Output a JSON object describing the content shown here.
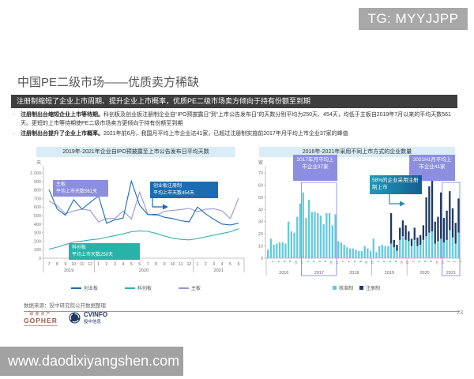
{
  "badge": {
    "text": "TG: MYYJJPP"
  },
  "page": {
    "title": "中国PE二级市场——优质卖方稀缺",
    "number": "23"
  },
  "header_bar": {
    "text": "注册制缩短了企业上市周期、提升企业上市概率，优质PE二级市场卖方倾向于持有份额至到期"
  },
  "bullets": [
    {
      "marker": "·",
      "lead": "注册制出台缩短企业上市等待期。",
      "text": "科创板及创业板注册制企业自“IPO预披露日”到“上市公告发布日”的天数分别平均为250天、454天，均低于主板自2019年7月以来的平均天数561天。更短的上市等待期使PE二级市场卖方更倾向于持有份额至到期"
    },
    {
      "marker": "·",
      "lead": "注册制出台提升了企业上市概率。",
      "text": "2021年前6月，我国月平均上市企业达41家，已超过注册制实施前2017年月平均上市企业37家的峰值"
    }
  ],
  "chart_data": [
    {
      "type": "line",
      "title": "2019年-2021年企业自IPO预披露至上市公告发布日平均天数",
      "unit": "天",
      "ylim": [
        0,
        1000
      ],
      "ytick_step": 100,
      "grid": false,
      "x_months": [
        "7",
        "8",
        "9",
        "10",
        "11",
        "12",
        "1",
        "2",
        "3",
        "4",
        "5",
        "6",
        "7",
        "8",
        "9",
        "10",
        "11",
        "12",
        "1",
        "2",
        "3",
        "4",
        "5",
        "6"
      ],
      "year_groups": [
        {
          "label": "2019",
          "count": 6
        },
        {
          "label": "2020",
          "count": 12
        },
        {
          "label": "2021",
          "count": 6
        }
      ],
      "series": [
        {
          "name": "创业板",
          "color": "#1b6cb0",
          "values": [
            805,
            575,
            505,
            685,
            575,
            655,
            730,
            410,
            450,
            470,
            905,
            620,
            510,
            515,
            480,
            465,
            440,
            425,
            600,
            520,
            455,
            400,
            390,
            410
          ]
        },
        {
          "name": "科创板",
          "color": "#2cb5a8",
          "values": [
            105,
            130,
            160,
            190,
            200,
            215,
            225,
            245,
            265,
            285,
            310,
            320,
            315,
            290,
            260,
            235,
            220,
            215,
            230,
            250,
            270,
            290,
            310,
            345
          ]
        },
        {
          "name": "主板",
          "color": "#9a94d9",
          "values": [
            670,
            615,
            520,
            555,
            575,
            560,
            425,
            465,
            465,
            555,
            460,
            775,
            515,
            500,
            550,
            560,
            570,
            585,
            545,
            575,
            580,
            555,
            465,
            705
          ]
        }
      ],
      "annotations": [
        {
          "lines": [
            "主板",
            "平均上市天数561天"
          ],
          "color": "#8c8fe0"
        },
        {
          "lines": [
            "创业板注册制",
            "平均上市天数454天"
          ],
          "color": "#1b6cb0"
        },
        {
          "lines": [
            "科创板",
            "平均上市天数250天"
          ],
          "color": "#29b2a8"
        }
      ],
      "legend_position": "bottom"
    },
    {
      "type": "bar",
      "stacked": true,
      "title": "2016年-2021年采用不同上市方式的企业数量",
      "unit": "家",
      "ylim": [
        0,
        70
      ],
      "ytick_step": 10,
      "grid": false,
      "years": [
        "2016",
        "2017",
        "2018",
        "2019",
        "2020",
        "2021"
      ],
      "month_ticks": [
        "2",
        "4",
        "6",
        "8",
        "10",
        "12"
      ],
      "series": [
        {
          "name": "核准制",
          "color": "#62c9dd",
          "values": [
            7,
            16,
            11,
            12,
            13,
            13,
            12,
            30,
            22,
            21,
            34,
            45,
            54,
            33,
            48,
            38,
            38,
            37,
            35,
            28,
            37,
            37,
            27,
            36,
            14,
            13,
            11,
            9,
            8,
            8,
            7,
            6,
            6,
            10,
            8,
            6,
            16,
            5,
            10,
            11,
            10,
            10,
            12,
            9,
            6,
            15,
            18,
            15,
            14,
            10,
            15,
            10,
            11,
            15,
            18,
            21,
            22,
            12,
            14,
            16,
            13,
            15,
            23,
            17,
            12,
            21
          ]
        },
        {
          "name": "注册制",
          "color": "#1e3a64",
          "values": [
            0,
            0,
            0,
            0,
            0,
            0,
            0,
            0,
            0,
            0,
            0,
            0,
            0,
            0,
            0,
            0,
            0,
            0,
            0,
            0,
            0,
            0,
            0,
            0,
            0,
            0,
            0,
            0,
            0,
            0,
            0,
            0,
            0,
            0,
            0,
            0,
            0,
            0,
            0,
            0,
            0,
            0,
            25,
            6,
            5,
            10,
            13,
            12,
            8,
            6,
            10,
            7,
            8,
            12,
            32,
            38,
            45,
            18,
            20,
            38,
            20,
            24,
            32,
            24,
            17,
            28
          ]
        }
      ],
      "callouts": [
        {
          "text": "2017年月平均上市企业37家",
          "color": "#8c8fe0"
        },
        {
          "text": "2021H1月平均上市企业41家",
          "color": "#8c8fe0"
        },
        {
          "text": "58%的企业采用注册制上市",
          "color": "#1f9ab8"
        }
      ],
      "highlight_years": [
        "2017",
        "2021"
      ],
      "legend_position": "bottom"
    }
  ],
  "footer": {
    "source": "数据来源：投中研究院公开数据整理"
  },
  "logos": {
    "gopher_cn": "歌斐资产",
    "gopher_en": "GOPHER",
    "cvinfo_en": "CVINFO",
    "cvinfo_cn": "投中信息"
  },
  "watermark": {
    "text": "www.daodixiyangshen.com"
  },
  "colors": {
    "header_bar_bg": "#3e3e3e",
    "title_strip_bg": "#d9edf6",
    "purple_box": "#8c8fe0",
    "badge_bg": "#a8a8a8",
    "watermark_bg": "#a2a2a2"
  }
}
